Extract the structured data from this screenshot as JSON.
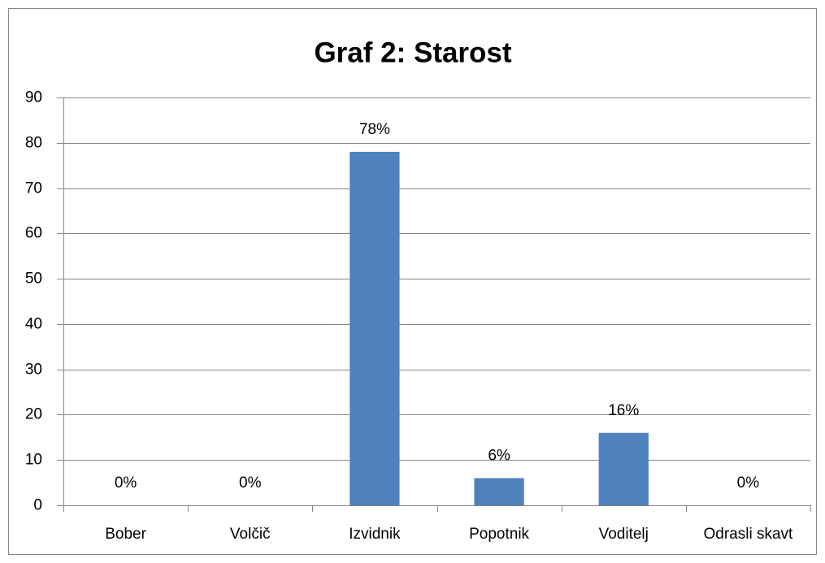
{
  "chart_data": {
    "type": "bar",
    "title": "Graf 2: Starost",
    "categories": [
      "Bober",
      "Volčič",
      "Izvidnik",
      "Popotnik",
      "Voditelj",
      "Odrasli skavt"
    ],
    "values": [
      0,
      0,
      78,
      6,
      16,
      0
    ],
    "value_labels": [
      "0%",
      "0%",
      "78%",
      "6%",
      "16%",
      "0%"
    ],
    "color": "#4f81bd",
    "ylim": [
      0,
      90
    ],
    "yticks": [
      0,
      10,
      20,
      30,
      40,
      50,
      60,
      70,
      80,
      90
    ],
    "grid": true
  }
}
